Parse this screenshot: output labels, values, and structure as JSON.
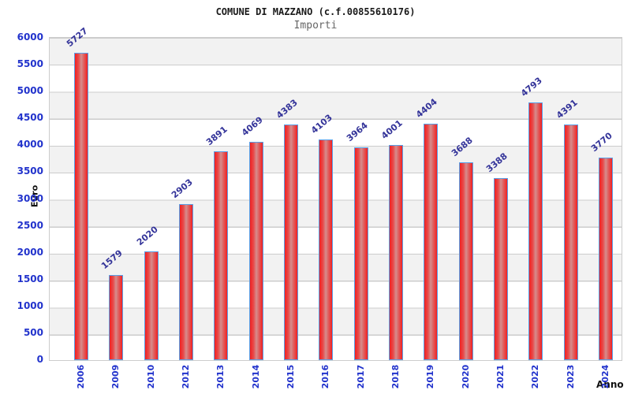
{
  "header": {
    "title": "COMUNE DI MAZZANO (c.f.00855610176)",
    "subtitle": "Importi"
  },
  "chart_data": {
    "type": "bar",
    "title": "COMUNE DI MAZZANO (c.f.00855610176)",
    "subtitle": "Importi",
    "categories": [
      "2006",
      "2009",
      "2010",
      "2012",
      "2013",
      "2014",
      "2015",
      "2016",
      "2017",
      "2018",
      "2019",
      "2020",
      "2021",
      "2022",
      "2023",
      "2024"
    ],
    "values": [
      5727,
      1579,
      2020,
      2903,
      3891,
      4069,
      4383,
      4103,
      3964,
      4001,
      4404,
      3688,
      3388,
      4793,
      4391,
      3770
    ],
    "xlabel": "Anno",
    "ylabel": "Euro",
    "ylim": [
      0,
      6000
    ],
    "yticks": [
      0,
      500,
      1000,
      1500,
      2000,
      2500,
      3000,
      3500,
      4000,
      4500,
      5000,
      5500,
      6000
    ],
    "grid": "horizontal gridlines with alternating gray/white bands",
    "legend": "none",
    "colors": {
      "bar_fill_edge": "#f12020",
      "bar_fill_center": "#d68d8d",
      "bar_border": "#58a0e8",
      "axis_tick_label": "#2233cc",
      "value_label": "#333399",
      "band": "#f2f2f2",
      "grid_line": "#cccccc",
      "title": "#1a1a1a",
      "subtitle": "#666666"
    }
  }
}
